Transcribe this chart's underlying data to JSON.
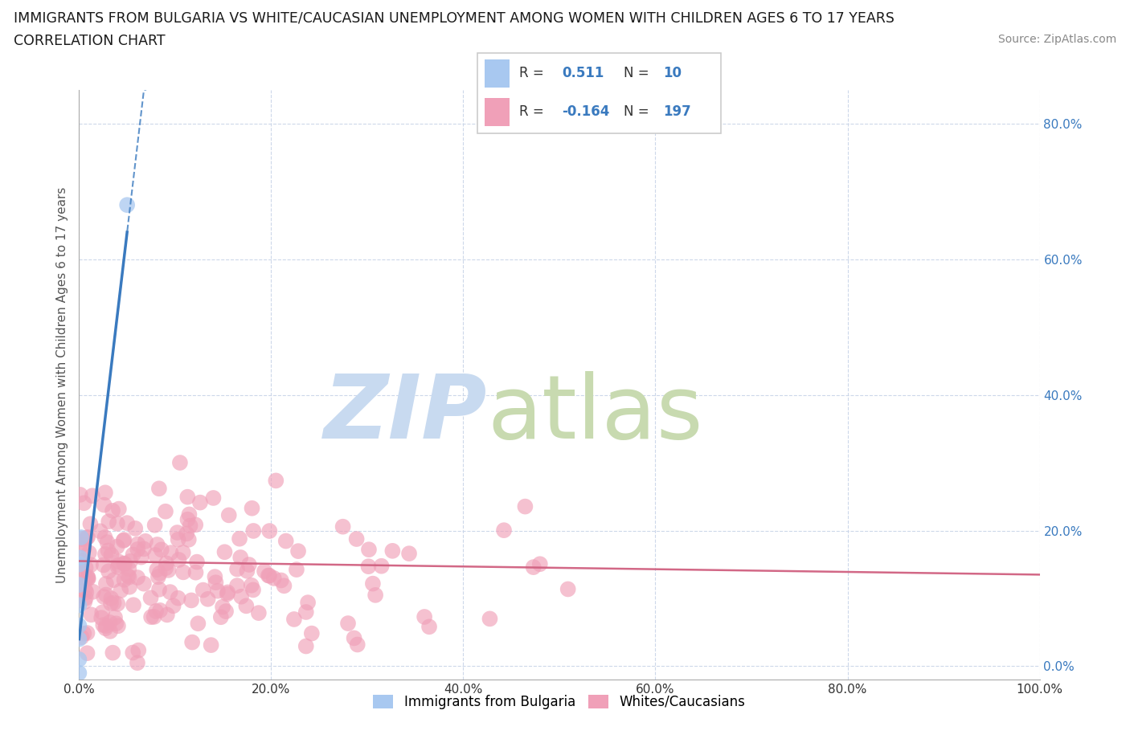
{
  "title_line1": "IMMIGRANTS FROM BULGARIA VS WHITE/CAUCASIAN UNEMPLOYMENT AMONG WOMEN WITH CHILDREN AGES 6 TO 17 YEARS",
  "title_line2": "CORRELATION CHART",
  "source": "Source: ZipAtlas.com",
  "ylabel": "Unemployment Among Women with Children Ages 6 to 17 years",
  "xlim": [
    0.0,
    1.0
  ],
  "ylim": [
    -0.02,
    0.85
  ],
  "yticks": [
    0.0,
    0.2,
    0.4,
    0.6,
    0.8
  ],
  "ytick_labels": [
    "0.0%",
    "20.0%",
    "40.0%",
    "60.0%",
    "80.0%"
  ],
  "xticks": [
    0.0,
    0.2,
    0.4,
    0.6,
    0.8,
    1.0
  ],
  "xtick_labels": [
    "0.0%",
    "20.0%",
    "40.0%",
    "60.0%",
    "80.0%",
    "100.0%"
  ],
  "blue_color": "#a8c8f0",
  "blue_line_color": "#3a7abf",
  "pink_color": "#f0a0b8",
  "pink_line_color": "#d06080",
  "legend_text_color": "#3a7abf",
  "grid_color": "#c8d4e8",
  "r_blue": 0.511,
  "n_blue": 10,
  "r_pink": -0.164,
  "n_pink": 197,
  "bg_color": "#ffffff",
  "watermark_zip_color": "#c8daf0",
  "watermark_atlas_color": "#c8dab0"
}
